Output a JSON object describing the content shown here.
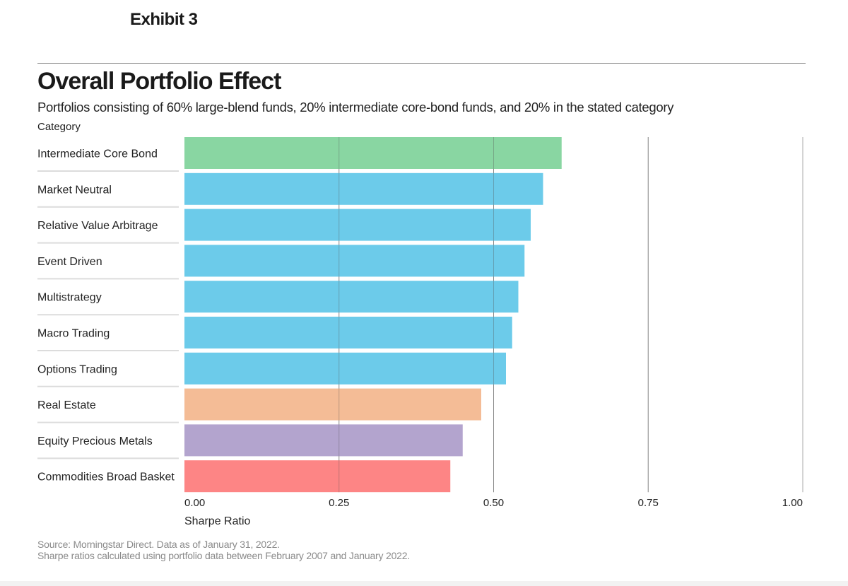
{
  "header": {
    "exhibit": "Exhibit 3",
    "title": "Overall Portfolio Effect",
    "subtitle": "Portfolios consisting of 60% large-blend funds, 20% intermediate core-bond funds, and 20% in the stated category",
    "category_label": "Category"
  },
  "chart_data": {
    "type": "bar",
    "orientation": "horizontal",
    "xlabel": "Sharpe Ratio",
    "xlim": [
      0,
      1
    ],
    "xticks": [
      "0.00",
      "0.25",
      "0.50",
      "0.75",
      "1.00"
    ],
    "grid": true,
    "categories": [
      "Intermediate Core Bond",
      "Market Neutral",
      "Relative Value Arbitrage",
      "Event Driven",
      "Multistrategy",
      "Macro Trading",
      "Options Trading",
      "Real Estate",
      "Equity Precious Metals",
      "Commodities Broad Basket"
    ],
    "values": [
      0.61,
      0.58,
      0.56,
      0.55,
      0.54,
      0.53,
      0.52,
      0.48,
      0.45,
      0.43
    ],
    "colors": [
      "#89d6a2",
      "#6ccbea",
      "#6ccbea",
      "#6ccbea",
      "#6ccbea",
      "#6ccbea",
      "#6ccbea",
      "#f4bc96",
      "#b3a4ce",
      "#fd8585"
    ]
  },
  "footnotes": {
    "source": "Source: Morningstar Direct. Data as of January 31, 2022.",
    "note": "Sharpe ratios calculated using portfolio data between February 2007 and January 2022."
  }
}
